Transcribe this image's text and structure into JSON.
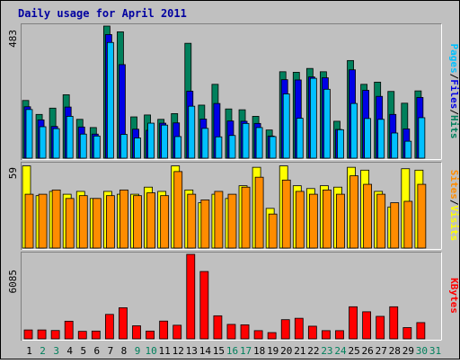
{
  "chart_data": {
    "type": "bar",
    "title": "Daily usage for April 2011",
    "categories": [
      "1",
      "2",
      "3",
      "4",
      "5",
      "6",
      "7",
      "8",
      "9",
      "10",
      "11",
      "12",
      "13",
      "14",
      "15",
      "16",
      "17",
      "18",
      "19",
      "20",
      "21",
      "22",
      "23",
      "24",
      "25",
      "26",
      "27",
      "28",
      "29",
      "30",
      "31"
    ],
    "weekend_days": [
      "2",
      "3",
      "9",
      "10",
      "16",
      "17",
      "23",
      "24",
      "30",
      "31"
    ],
    "panels": [
      {
        "name": "top",
        "ytick": "483",
        "ylim": [
          0,
          483
        ],
        "series": [
          {
            "name": "Hits",
            "color": "#00805c",
            "values": [
              211,
              160,
              183,
              232,
              142,
              112,
              483,
              462,
              151,
              158,
              142,
              163,
              420,
              194,
              270,
              180,
              177,
              153,
              103,
              316,
              314,
              328,
              316,
              135,
              357,
              270,
              278,
              244,
              201,
              246
            ]
          },
          {
            "name": "Files",
            "color": "#0000e6",
            "values": [
              188,
              140,
              116,
              187,
              114,
              88,
              452,
              342,
              106,
              102,
              128,
              129,
              245,
              143,
              200,
              136,
              135,
              127,
              81,
              287,
              286,
              297,
              294,
              105,
              323,
              248,
              226,
              160,
              107,
              222
            ]
          },
          {
            "name": "Pages",
            "color": "#00c0ff",
            "values": [
              178,
              115,
              108,
              153,
              88,
              81,
              423,
              87,
              74,
              128,
              121,
              79,
              190,
              109,
              78,
              83,
              127,
              112,
              79,
              235,
              146,
              292,
              252,
              104,
              200,
              145,
              142,
              92,
              62,
              148
            ]
          }
        ]
      },
      {
        "name": "middle",
        "ytick": "59",
        "ylim": [
          0,
          59
        ],
        "series": [
          {
            "name": "Visits",
            "color": "#ffff00",
            "values": [
              58,
              37,
              40,
              38,
              40,
              35,
              40,
              38,
              38,
              43,
              40,
              58,
              41,
              32,
              38,
              35,
              44,
              57,
              28,
              58,
              44,
              42,
              44,
              43,
              57,
              55,
              40,
              29,
              56,
              55
            ]
          },
          {
            "name": "Sites",
            "color": "#ff8c00",
            "values": [
              38,
              38,
              41,
              35,
              37,
              35,
              37,
              41,
              37,
              39,
              37,
              54,
              38,
              34,
              40,
              38,
              43,
              50,
              24,
              48,
              40,
              38,
              41,
              38,
              51,
              45,
              38,
              32,
              33,
              45
            ]
          }
        ]
      },
      {
        "name": "bottom",
        "ytick": "6085",
        "ylim": [
          0,
          6085
        ],
        "series": [
          {
            "name": "KBytes",
            "color": "#ff0000",
            "values": [
              640,
              640,
              600,
              1270,
              540,
              560,
              1760,
              2240,
              940,
              560,
              1280,
              980,
              6085,
              4850,
              1660,
              1040,
              1010,
              590,
              450,
              1380,
              1480,
              910,
              590,
              590,
              2310,
              1950,
              1620,
              2310,
              810,
              1170
            ]
          }
        ]
      }
    ]
  }
}
